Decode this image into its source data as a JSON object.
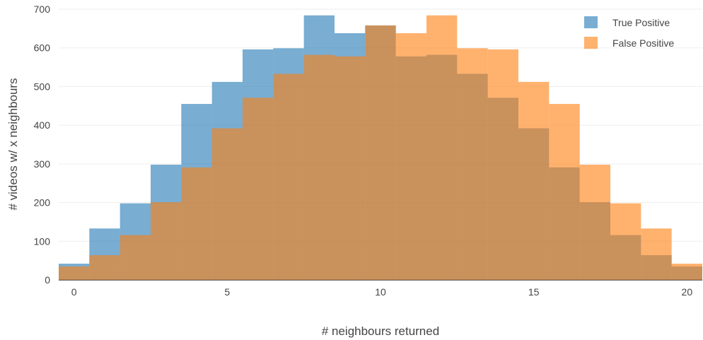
{
  "chart_data": {
    "type": "bar",
    "histogram": true,
    "overlay": true,
    "title": "",
    "xlabel": "# neighbours returned",
    "ylabel": "# videos w/ x neighbours",
    "xlim": [
      -0.5,
      20.5
    ],
    "ylim": [
      0,
      700
    ],
    "xticks": [
      0,
      5,
      10,
      15,
      20
    ],
    "yticks": [
      0,
      100,
      200,
      300,
      400,
      500,
      600,
      700
    ],
    "grid": true,
    "legend_position": "top-right",
    "x": [
      0,
      1,
      2,
      3,
      4,
      5,
      6,
      7,
      8,
      9,
      10,
      11,
      12,
      13,
      14,
      15,
      16,
      17,
      18,
      19,
      20
    ],
    "series": [
      {
        "name": "True Positive",
        "color": "#1f77b4",
        "values": [
          42,
          133,
          198,
          298,
          455,
          512,
          596,
          599,
          684,
          638,
          658,
          578,
          582,
          533,
          471,
          392,
          291,
          201,
          116,
          64,
          35
        ]
      },
      {
        "name": "False Positive",
        "color": "#ff7f0e",
        "values": [
          35,
          64,
          116,
          201,
          291,
          392,
          471,
          533,
          582,
          578,
          658,
          638,
          684,
          599,
          596,
          512,
          455,
          298,
          198,
          133,
          42
        ]
      }
    ]
  }
}
